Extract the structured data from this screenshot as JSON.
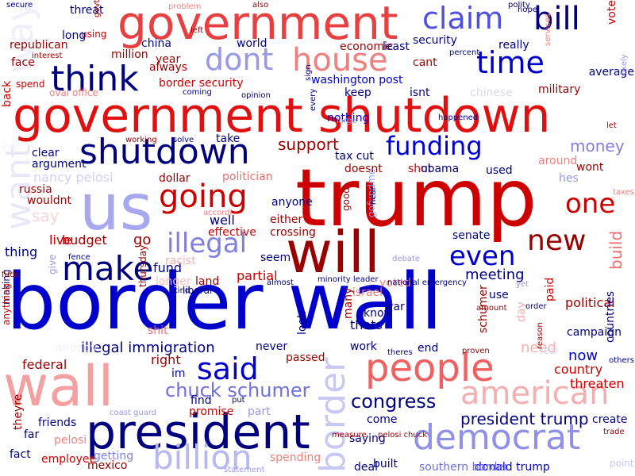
{
  "palette": {
    "navy": "#00007f",
    "blue": "#0000cc",
    "red": "#cc0000",
    "maroon": "#990000",
    "lightred": "#f08080",
    "lightblue": "#a0a0f0"
  },
  "words": [
    {
      "t": "border wall",
      "c": "#0000cc",
      "o": 1
    },
    {
      "t": "trump",
      "c": "#cc0000",
      "o": 1
    },
    {
      "t": "government shutdown",
      "c": "#e01010",
      "o": 1
    },
    {
      "t": "us",
      "c": "#a8a8f0",
      "o": 1
    },
    {
      "t": "wall",
      "c": "#f4a0a0",
      "o": 1
    },
    {
      "t": "president",
      "c": "#00007f",
      "o": 1
    },
    {
      "t": "will",
      "c": "#990000",
      "o": 1
    },
    {
      "t": "government",
      "c": "#e84040",
      "o": 1
    },
    {
      "t": "shutdown",
      "c": "#00007f",
      "o": 1
    },
    {
      "t": "people",
      "c": "#f06060",
      "o": 1
    },
    {
      "t": "democrat",
      "c": "#9090e8",
      "o": 1
    },
    {
      "t": "border",
      "c": "#c8c8f4",
      "o": 1
    },
    {
      "t": "bill",
      "c": "#00007f",
      "o": 1
    },
    {
      "t": "claim",
      "c": "#5050e0",
      "o": 1
    },
    {
      "t": "time",
      "c": "#0000cc",
      "o": 1
    },
    {
      "t": "house",
      "c": "#f08080",
      "o": 1
    },
    {
      "t": "dont",
      "c": "#9898e8",
      "o": 1
    },
    {
      "t": "think",
      "c": "#00007f",
      "o": 1
    },
    {
      "t": "make",
      "c": "#00007f",
      "o": 1
    },
    {
      "t": "going",
      "c": "#cc0000",
      "o": 1
    },
    {
      "t": "illegal",
      "c": "#8080e0",
      "o": 1
    },
    {
      "t": "funding",
      "c": "#0000cc",
      "o": 1
    },
    {
      "t": "one",
      "c": "#cc0000",
      "o": 1
    },
    {
      "t": "new",
      "c": "#990000",
      "o": 1
    },
    {
      "t": "even",
      "c": "#0000cc",
      "o": 1
    },
    {
      "t": "said",
      "c": "#0000cc",
      "o": 1
    },
    {
      "t": "american",
      "c": "#f4b0b0",
      "o": 1
    },
    {
      "t": "billion",
      "c": "#b8b8f0",
      "o": 1
    },
    {
      "t": "want",
      "c": "#e8e8fa",
      "o": 1
    },
    {
      "t": "way",
      "c": "#f0f0fa",
      "o": 1
    },
    {
      "t": "say",
      "c": "#f6d6d6",
      "o": 1
    },
    {
      "t": "chuck schumer",
      "c": "#7070e0",
      "o": 1
    },
    {
      "t": "congress",
      "c": "#00007f",
      "o": 1
    },
    {
      "t": "support",
      "c": "#990000",
      "o": 1
    },
    {
      "t": "build",
      "c": "#e87070",
      "o": 1
    },
    {
      "t": "president trump",
      "c": "#00007f",
      "o": 1
    },
    {
      "t": "illegal immigration",
      "c": "#00007f",
      "o": 1
    },
    {
      "t": "money",
      "c": "#8080e0",
      "o": 1
    },
    {
      "t": "meeting",
      "c": "#00007f",
      "o": 1
    },
    {
      "t": "political",
      "c": "#990000",
      "o": 1
    },
    {
      "t": "country",
      "c": "#cc0000",
      "o": 1
    },
    {
      "t": "threaten",
      "c": "#cc0000",
      "o": 1
    },
    {
      "t": "now",
      "c": "#0000cc",
      "o": 1
    },
    {
      "t": "need",
      "c": "#f4b0b0",
      "o": 1
    },
    {
      "t": "federal",
      "c": "#990000",
      "o": 1
    },
    {
      "t": "nancy pelosi",
      "c": "#d0d0f4",
      "o": 1
    },
    {
      "t": "fund",
      "c": "#00007f",
      "o": 1
    },
    {
      "t": "thats",
      "c": "#00007f",
      "o": 1
    },
    {
      "t": "right",
      "c": "#990000",
      "o": 1
    },
    {
      "t": "well",
      "c": "#00007f",
      "o": 1
    },
    {
      "t": "thing",
      "c": "#00007f",
      "o": 1
    },
    {
      "t": "go",
      "c": "#990000",
      "o": 1
    },
    {
      "t": "budget",
      "c": "#990000",
      "o": 1
    },
    {
      "t": "live",
      "c": "#cc0000",
      "o": 1
    },
    {
      "t": "partial",
      "c": "#cc0000",
      "o": 1
    },
    {
      "t": "crossing",
      "c": "#990000",
      "o": 1
    },
    {
      "t": "senate",
      "c": "#00007f",
      "o": 1
    },
    {
      "t": "countries",
      "c": "#00007f",
      "o": 1
    },
    {
      "t": "donald trump",
      "c": "#0000cc",
      "o": 1
    },
    {
      "t": "southern border",
      "c": "#7070e0",
      "o": 1
    },
    {
      "t": "built",
      "c": "#00007f",
      "o": 1
    },
    {
      "t": "deal",
      "c": "#00007f",
      "o": 1
    },
    {
      "t": "employee",
      "c": "#cc0000",
      "o": 1
    },
    {
      "t": "getting",
      "c": "#8080e0",
      "o": 1
    },
    {
      "t": "mexico",
      "c": "#990000",
      "o": 1
    },
    {
      "t": "spending",
      "c": "#f08080",
      "o": 1
    },
    {
      "t": "saying",
      "c": "#00007f",
      "o": 1
    },
    {
      "t": "come",
      "c": "#00007f",
      "o": 1
    },
    {
      "t": "part",
      "c": "#9898e8",
      "o": 1
    },
    {
      "t": "promise",
      "c": "#cc0000",
      "o": 1
    },
    {
      "t": "find",
      "c": "#00007f",
      "o": 1
    },
    {
      "t": "friends",
      "c": "#00007f",
      "o": 1
    },
    {
      "t": "pelosi",
      "c": "#f08080",
      "o": 1
    },
    {
      "t": "fact",
      "c": "#00007f",
      "o": 1
    },
    {
      "t": "theyre",
      "c": "#990000",
      "o": 1
    },
    {
      "t": "far",
      "c": "#00007f",
      "o": 1
    },
    {
      "t": "im",
      "c": "#0000cc",
      "o": 1
    },
    {
      "t": "shit",
      "c": "#e87070",
      "o": 1
    },
    {
      "t": "passed",
      "c": "#990000",
      "o": 1
    },
    {
      "t": "work",
      "c": "#00007f",
      "o": 1
    },
    {
      "t": "never",
      "c": "#00007f",
      "o": 1
    },
    {
      "t": "end",
      "c": "#00007f",
      "o": 1
    },
    {
      "t": "real",
      "c": "#d8d8f4",
      "o": 1
    },
    {
      "t": "campaign",
      "c": "#00007f",
      "o": 1
    },
    {
      "t": "day",
      "c": "#f4b0b0",
      "o": 1
    },
    {
      "t": "paid",
      "c": "#cc0000",
      "o": 1
    },
    {
      "t": "schumer",
      "c": "#990000",
      "o": 1
    },
    {
      "t": "use",
      "c": "#00007f",
      "o": 1
    },
    {
      "t": "war",
      "c": "#00007f",
      "o": 1
    },
    {
      "t": "know",
      "c": "#00007f",
      "o": 1
    },
    {
      "t": "voted",
      "c": "#f08080",
      "o": 1
    },
    {
      "t": "israel",
      "c": "#f08080",
      "o": 1
    },
    {
      "t": "look",
      "c": "#00007f",
      "o": 1
    },
    {
      "t": "many",
      "c": "#990000",
      "o": 1
    },
    {
      "t": "seem",
      "c": "#00007f",
      "o": 1
    },
    {
      "t": "anyone",
      "c": "#00007f",
      "o": 1
    },
    {
      "t": "either",
      "c": "#990000",
      "o": 1
    },
    {
      "t": "effective",
      "c": "#cc0000",
      "o": 1
    },
    {
      "t": "racist",
      "c": "#f4b0b0",
      "o": 1
    },
    {
      "t": "land",
      "c": "#990000",
      "o": 1
    },
    {
      "t": "longer",
      "c": "#f4c0c0",
      "o": 1
    },
    {
      "t": "politician",
      "c": "#e87070",
      "o": 1
    },
    {
      "t": "dollar",
      "c": "#990000",
      "o": 1
    },
    {
      "t": "russia",
      "c": "#990000",
      "o": 1
    },
    {
      "t": "wouldnt",
      "c": "#990000",
      "o": 1
    },
    {
      "t": "clear",
      "c": "#00007f",
      "o": 1
    },
    {
      "t": "argument",
      "c": "#00007f",
      "o": 1
    },
    {
      "t": "take",
      "c": "#00007f",
      "o": 1
    },
    {
      "t": "nothing",
      "c": "#0000cc",
      "o": 1
    },
    {
      "t": "doesnt",
      "c": "#990000",
      "o": 1
    },
    {
      "t": "tax cut",
      "c": "#00007f",
      "o": 1
    },
    {
      "t": "shut",
      "c": "#cc0000",
      "o": 1
    },
    {
      "t": "obama",
      "c": "#00007f",
      "o": 1
    },
    {
      "t": "used",
      "c": "#00007f",
      "o": 1
    },
    {
      "t": "around",
      "c": "#f08080",
      "o": 1
    },
    {
      "t": "hes",
      "c": "#9898e8",
      "o": 1
    },
    {
      "t": "wont",
      "c": "#990000",
      "o": 1
    },
    {
      "t": "keep",
      "c": "#00007f",
      "o": 1
    },
    {
      "t": "isnt",
      "c": "#00007f",
      "o": 1
    },
    {
      "t": "military",
      "c": "#990000",
      "o": 1
    },
    {
      "t": "average",
      "c": "#00007f",
      "o": 1
    },
    {
      "t": "washington post",
      "c": "#0000cc",
      "o": 1
    },
    {
      "t": "border security",
      "c": "#cc0000",
      "o": 1
    },
    {
      "t": "year",
      "c": "#990000",
      "o": 1
    },
    {
      "t": "always",
      "c": "#990000",
      "o": 1
    },
    {
      "t": "china",
      "c": "#00007f",
      "o": 1
    },
    {
      "t": "million",
      "c": "#990000",
      "o": 1
    },
    {
      "t": "world",
      "c": "#00007f",
      "o": 1
    },
    {
      "t": "economic",
      "c": "#990000",
      "o": 1
    },
    {
      "t": "least",
      "c": "#00007f",
      "o": 1
    },
    {
      "t": "security",
      "c": "#00007f",
      "o": 1
    },
    {
      "t": "cant",
      "c": "#990000",
      "o": 1
    },
    {
      "t": "really",
      "c": "#00007f",
      "o": 1
    },
    {
      "t": "republican",
      "c": "#990000",
      "o": 1
    },
    {
      "t": "long",
      "c": "#00007f",
      "o": 1
    },
    {
      "t": "using",
      "c": "#cc0000",
      "o": 1
    },
    {
      "t": "threat",
      "c": "#00007f",
      "o": 1
    },
    {
      "t": "face",
      "c": "#990000",
      "o": 1
    },
    {
      "t": "spend",
      "c": "#cc0000",
      "o": 1
    },
    {
      "t": "back",
      "c": "#cc0000",
      "o": 1
    },
    {
      "t": "oval office",
      "c": "#f08080",
      "o": 1
    },
    {
      "t": "vote",
      "c": "#cc0000",
      "o": 1
    },
    {
      "t": "good",
      "c": "#990000",
      "o": 1
    },
    {
      "t": "gofundme",
      "c": "#9898e8",
      "o": 1
    },
    {
      "t": "yes",
      "c": "#f4f4fa",
      "o": 1
    },
    {
      "t": "already",
      "c": "#f0f0fa",
      "o": 1
    },
    {
      "t": "making",
      "c": "#00007f",
      "o": 1
    },
    {
      "t": "anything",
      "c": "#cc0000",
      "o": 1
    },
    {
      "t": "thursday",
      "c": "#990000",
      "o": 1
    },
    {
      "t": "give",
      "c": "#9898e8",
      "o": 1
    },
    {
      "t": "liberal",
      "c": "#00007f",
      "o": 1
    },
    {
      "t": "minority leader",
      "c": "#00007f",
      "o": 1
    },
    {
      "t": "national emergency",
      "c": "#00007f",
      "o": 1
    },
    {
      "t": "chinese",
      "c": "#d8d8f4",
      "o": 1
    },
    {
      "t": "create",
      "c": "#00007f",
      "o": 1
    },
    {
      "t": "trade",
      "c": "#990000",
      "o": 1
    },
    {
      "t": "point",
      "c": "#c8c8f4",
      "o": 1
    },
    {
      "t": "taxes",
      "c": "#f08080",
      "o": 1
    },
    {
      "t": "let",
      "c": "#990000",
      "o": 1
    },
    {
      "t": "likely",
      "c": "#9898e8",
      "o": 1
    },
    {
      "t": "coast guard",
      "c": "#9898e8",
      "o": 1
    },
    {
      "t": "measure",
      "c": "#990000",
      "o": 1
    },
    {
      "t": "pelosi chuck",
      "c": "#990000",
      "o": 1
    },
    {
      "t": "statement",
      "c": "#9898e8",
      "o": 1
    },
    {
      "t": "secure",
      "c": "#00007f",
      "o": 1
    },
    {
      "t": "govt",
      "c": "#990000",
      "o": 1
    },
    {
      "t": "problem",
      "c": "#f08080",
      "o": 1
    },
    {
      "t": "polity",
      "c": "#00007f",
      "o": 1
    },
    {
      "t": "hope",
      "c": "#00007f",
      "o": 1
    },
    {
      "t": "interest",
      "c": "#990000",
      "o": 1
    },
    {
      "t": "percent",
      "c": "#00007f",
      "o": 1
    },
    {
      "t": "sign",
      "c": "#00007f",
      "o": 1
    },
    {
      "t": "opinion",
      "c": "#00007f",
      "o": 1
    },
    {
      "t": "coming",
      "c": "#00007f",
      "o": 1
    },
    {
      "t": "working",
      "c": "#990000",
      "o": 1
    },
    {
      "t": "solve",
      "c": "#00007f",
      "o": 1
    },
    {
      "t": "fuck",
      "c": "#990000",
      "o": 1
    },
    {
      "t": "fence",
      "c": "#00007f",
      "o": 1
    },
    {
      "t": "almost",
      "c": "#00007f",
      "o": 1
    },
    {
      "t": "debate",
      "c": "#9898e8",
      "o": 1
    },
    {
      "t": "near",
      "c": "#00007f",
      "o": 1
    },
    {
      "t": "happened",
      "c": "#00007f",
      "o": 1
    },
    {
      "t": "proven",
      "c": "#990000",
      "o": 1
    },
    {
      "t": "theres",
      "c": "#00007f",
      "o": 1
    },
    {
      "t": "amount",
      "c": "#990000",
      "o": 1
    },
    {
      "t": "order",
      "c": "#00007f",
      "o": 1
    },
    {
      "t": "reason",
      "c": "#990000",
      "o": 1
    },
    {
      "t": "others",
      "c": "#00007f",
      "o": 1
    },
    {
      "t": "kind",
      "c": "#00007f",
      "o": 1
    },
    {
      "t": "services",
      "c": "#f08080",
      "o": 1
    },
    {
      "t": "left",
      "c": "#990000",
      "o": 1
    },
    {
      "t": "large",
      "c": "#9898e8",
      "o": 1
    },
    {
      "t": "every",
      "c": "#00007f",
      "o": 1
    },
    {
      "t": "accordi",
      "c": "#f08080",
      "o": 1
    },
    {
      "t": "put",
      "c": "#00007f",
      "o": 1
    },
    {
      "t": "yet",
      "c": "#9898e8",
      "o": 1
    },
    {
      "t": "also",
      "c": "#990000",
      "o": 1
    }
  ]
}
